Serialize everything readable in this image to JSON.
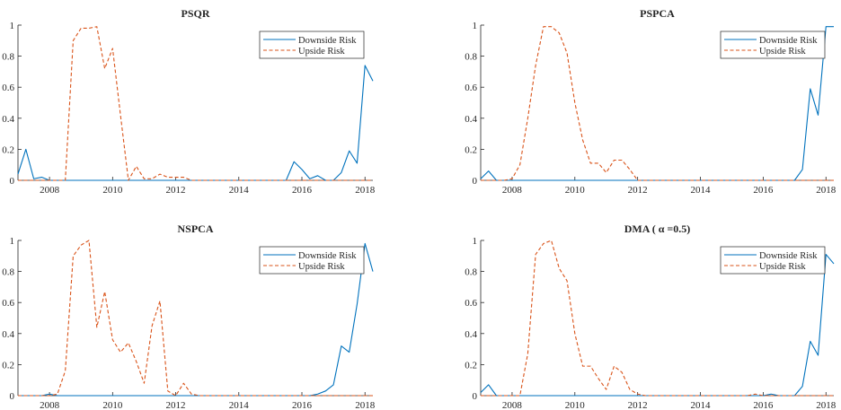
{
  "colors": {
    "downside": "#0072BD",
    "upside": "#D95319",
    "axis": "#262626",
    "background": "#ffffff"
  },
  "chart_data": [
    {
      "type": "line",
      "title": "PSQR",
      "xlabel": "",
      "ylabel": "",
      "xlim": [
        2007.0,
        2018.25
      ],
      "ylim": [
        0,
        1
      ],
      "xticks": [
        2008,
        2010,
        2012,
        2014,
        2016,
        2018
      ],
      "yticks": [
        0,
        0.2,
        0.4,
        0.6,
        0.8,
        1
      ],
      "grid": false,
      "legend_position": "top-right",
      "series": [
        {
          "name": "Downside Risk",
          "style": "solid",
          "x": [
            2007.0,
            2007.25,
            2007.5,
            2007.75,
            2008.0,
            2008.25,
            2008.5,
            2008.75,
            2009.0,
            2009.25,
            2009.5,
            2009.75,
            2010.0,
            2010.25,
            2010.5,
            2010.75,
            2011.0,
            2011.25,
            2011.5,
            2011.75,
            2012.0,
            2012.25,
            2012.5,
            2012.75,
            2013.0,
            2013.25,
            2013.5,
            2013.75,
            2014.0,
            2014.25,
            2014.5,
            2014.75,
            2015.0,
            2015.25,
            2015.5,
            2015.75,
            2016.0,
            2016.25,
            2016.5,
            2016.75,
            2017.0,
            2017.25,
            2017.5,
            2017.75,
            2018.0,
            2018.25
          ],
          "y": [
            0.04,
            0.2,
            0.01,
            0.02,
            0.0,
            0.0,
            0.0,
            0.0,
            0.0,
            0.0,
            0.0,
            0.0,
            0.0,
            0.0,
            0.0,
            0.0,
            0.0,
            0.0,
            0.0,
            0.0,
            0.0,
            0.0,
            0.0,
            0.0,
            0.0,
            0.0,
            0.0,
            0.0,
            0.0,
            0.0,
            0.0,
            0.0,
            0.0,
            0.0,
            0.0,
            0.12,
            0.07,
            0.01,
            0.03,
            0.0,
            0.0,
            0.05,
            0.19,
            0.11,
            0.74,
            0.64
          ]
        },
        {
          "name": "Upside Risk",
          "style": "dashed",
          "x": [
            2007.0,
            2007.25,
            2007.5,
            2007.75,
            2008.0,
            2008.25,
            2008.5,
            2008.75,
            2009.0,
            2009.25,
            2009.5,
            2009.75,
            2010.0,
            2010.25,
            2010.5,
            2010.75,
            2011.0,
            2011.25,
            2011.5,
            2011.75,
            2012.0,
            2012.25,
            2012.5,
            2012.75,
            2013.0,
            2013.25,
            2013.5,
            2013.75,
            2014.0,
            2014.25,
            2014.5,
            2014.75,
            2015.0,
            2015.25,
            2015.5,
            2015.75,
            2016.0,
            2016.25,
            2016.5,
            2016.75,
            2017.0,
            2017.25,
            2017.5,
            2017.75,
            2018.0,
            2018.25
          ],
          "y": [
            0.0,
            0.0,
            0.0,
            0.0,
            0.0,
            0.0,
            0.0,
            0.9,
            0.98,
            0.98,
            0.99,
            0.72,
            0.85,
            0.42,
            0.0,
            0.09,
            0.01,
            0.01,
            0.04,
            0.02,
            0.02,
            0.02,
            0.0,
            0.0,
            0.0,
            0.0,
            0.0,
            0.0,
            0.0,
            0.0,
            0.0,
            0.0,
            0.0,
            0.0,
            0.0,
            0.0,
            0.0,
            0.0,
            0.0,
            0.0,
            0.0,
            0.0,
            0.0,
            0.0,
            0.0,
            0.0
          ]
        }
      ]
    },
    {
      "type": "line",
      "title": "PSPCA",
      "xlabel": "",
      "ylabel": "",
      "xlim": [
        2007.0,
        2018.25
      ],
      "ylim": [
        0,
        1
      ],
      "xticks": [
        2008,
        2010,
        2012,
        2014,
        2016,
        2018
      ],
      "yticks": [
        0,
        0.2,
        0.4,
        0.6,
        0.8,
        1
      ],
      "grid": false,
      "legend_position": "top-right",
      "series": [
        {
          "name": "Downside Risk",
          "style": "solid",
          "x": [
            2007.0,
            2007.25,
            2007.5,
            2007.75,
            2008.0,
            2008.25,
            2008.5,
            2008.75,
            2009.0,
            2009.25,
            2009.5,
            2009.75,
            2010.0,
            2010.25,
            2010.5,
            2010.75,
            2011.0,
            2011.25,
            2011.5,
            2011.75,
            2012.0,
            2012.25,
            2012.5,
            2012.75,
            2013.0,
            2013.25,
            2013.5,
            2013.75,
            2014.0,
            2014.25,
            2014.5,
            2014.75,
            2015.0,
            2015.25,
            2015.5,
            2015.75,
            2016.0,
            2016.25,
            2016.5,
            2016.75,
            2017.0,
            2017.25,
            2017.5,
            2017.75,
            2018.0,
            2018.25
          ],
          "y": [
            0.01,
            0.06,
            0.0,
            0.0,
            0.0,
            0.0,
            0.0,
            0.0,
            0.0,
            0.0,
            0.0,
            0.0,
            0.0,
            0.0,
            0.0,
            0.0,
            0.0,
            0.0,
            0.0,
            0.0,
            0.0,
            0.0,
            0.0,
            0.0,
            0.0,
            0.0,
            0.0,
            0.0,
            0.0,
            0.0,
            0.0,
            0.0,
            0.0,
            0.0,
            0.0,
            0.0,
            0.0,
            0.0,
            0.0,
            0.0,
            0.0,
            0.07,
            0.59,
            0.42,
            0.99,
            0.99
          ]
        },
        {
          "name": "Upside Risk",
          "style": "dashed",
          "x": [
            2007.0,
            2007.25,
            2007.5,
            2007.75,
            2008.0,
            2008.25,
            2008.5,
            2008.75,
            2009.0,
            2009.25,
            2009.5,
            2009.75,
            2010.0,
            2010.25,
            2010.5,
            2010.75,
            2011.0,
            2011.25,
            2011.5,
            2011.75,
            2012.0,
            2012.25,
            2012.5,
            2012.75,
            2013.0,
            2013.25,
            2013.5,
            2013.75,
            2014.0,
            2014.25,
            2014.5,
            2014.75,
            2015.0,
            2015.25,
            2015.5,
            2015.75,
            2016.0,
            2016.25,
            2016.5,
            2016.75,
            2017.0,
            2017.25,
            2017.5,
            2017.75,
            2018.0,
            2018.25
          ],
          "y": [
            0.0,
            0.0,
            0.0,
            0.0,
            0.01,
            0.1,
            0.4,
            0.74,
            0.99,
            0.99,
            0.95,
            0.82,
            0.5,
            0.26,
            0.11,
            0.11,
            0.05,
            0.13,
            0.13,
            0.07,
            0.0,
            0.0,
            0.0,
            0.0,
            0.0,
            0.0,
            0.0,
            0.0,
            0.0,
            0.0,
            0.0,
            0.0,
            0.0,
            0.0,
            0.0,
            0.0,
            0.0,
            0.0,
            0.0,
            0.0,
            0.0,
            0.0,
            0.0,
            0.0,
            0.0,
            0.0
          ]
        }
      ]
    },
    {
      "type": "line",
      "title": "NSPCA",
      "xlabel": "",
      "ylabel": "",
      "xlim": [
        2007.0,
        2018.25
      ],
      "ylim": [
        0,
        1
      ],
      "xticks": [
        2008,
        2010,
        2012,
        2014,
        2016,
        2018
      ],
      "yticks": [
        0,
        0.2,
        0.4,
        0.6,
        0.8,
        1
      ],
      "grid": false,
      "legend_position": "top-right",
      "series": [
        {
          "name": "Downside Risk",
          "style": "solid",
          "x": [
            2007.0,
            2007.25,
            2007.5,
            2007.75,
            2008.0,
            2008.25,
            2008.5,
            2008.75,
            2009.0,
            2009.25,
            2009.5,
            2009.75,
            2010.0,
            2010.25,
            2010.5,
            2010.75,
            2011.0,
            2011.25,
            2011.5,
            2011.75,
            2012.0,
            2012.25,
            2012.5,
            2012.75,
            2013.0,
            2013.25,
            2013.5,
            2013.75,
            2014.0,
            2014.25,
            2014.5,
            2014.75,
            2015.0,
            2015.25,
            2015.5,
            2015.75,
            2016.0,
            2016.25,
            2016.5,
            2016.75,
            2017.0,
            2017.25,
            2017.5,
            2017.75,
            2018.0,
            2018.25
          ],
          "y": [
            0.0,
            0.0,
            0.0,
            0.0,
            0.01,
            0.0,
            0.0,
            0.0,
            0.0,
            0.0,
            0.0,
            0.0,
            0.0,
            0.0,
            0.0,
            0.0,
            0.0,
            0.0,
            0.0,
            0.0,
            0.0,
            0.0,
            0.0,
            0.0,
            0.0,
            0.0,
            0.0,
            0.0,
            0.0,
            0.0,
            0.0,
            0.0,
            0.0,
            0.0,
            0.0,
            0.0,
            0.0,
            0.0,
            0.01,
            0.03,
            0.07,
            0.32,
            0.28,
            0.59,
            0.98,
            0.8
          ]
        },
        {
          "name": "Upside Risk",
          "style": "dashed",
          "x": [
            2007.0,
            2007.25,
            2007.5,
            2007.75,
            2008.0,
            2008.25,
            2008.5,
            2008.75,
            2009.0,
            2009.25,
            2009.5,
            2009.75,
            2010.0,
            2010.25,
            2010.5,
            2010.75,
            2011.0,
            2011.25,
            2011.5,
            2011.75,
            2012.0,
            2012.25,
            2012.5,
            2012.75,
            2013.0,
            2013.25,
            2013.5,
            2013.75,
            2014.0,
            2014.25,
            2014.5,
            2014.75,
            2015.0,
            2015.25,
            2015.5,
            2015.75,
            2016.0,
            2016.25,
            2016.5,
            2016.75,
            2017.0,
            2017.25,
            2017.5,
            2017.75,
            2018.0,
            2018.25
          ],
          "y": [
            0.0,
            0.0,
            0.0,
            0.0,
            0.0,
            0.01,
            0.16,
            0.9,
            0.97,
            1.0,
            0.44,
            0.67,
            0.36,
            0.28,
            0.34,
            0.22,
            0.08,
            0.45,
            0.61,
            0.03,
            0.0,
            0.08,
            0.01,
            0.0,
            0.0,
            0.0,
            0.0,
            0.0,
            0.0,
            0.0,
            0.0,
            0.0,
            0.0,
            0.0,
            0.0,
            0.0,
            0.0,
            0.0,
            0.0,
            0.0,
            0.0,
            0.0,
            0.0,
            0.0,
            0.0,
            0.0
          ]
        }
      ]
    },
    {
      "type": "line",
      "title": "DMA ( α =0.5)",
      "xlabel": "",
      "ylabel": "",
      "xlim": [
        2007.0,
        2018.25
      ],
      "ylim": [
        0,
        1
      ],
      "xticks": [
        2008,
        2010,
        2012,
        2014,
        2016,
        2018
      ],
      "yticks": [
        0,
        0.2,
        0.4,
        0.6,
        0.8,
        1
      ],
      "grid": false,
      "legend_position": "top-right",
      "series": [
        {
          "name": "Downside Risk",
          "style": "solid",
          "x": [
            2007.0,
            2007.25,
            2007.5,
            2007.75,
            2008.0,
            2008.25,
            2008.5,
            2008.75,
            2009.0,
            2009.25,
            2009.5,
            2009.75,
            2010.0,
            2010.25,
            2010.5,
            2010.75,
            2011.0,
            2011.25,
            2011.5,
            2011.75,
            2012.0,
            2012.25,
            2012.5,
            2012.75,
            2013.0,
            2013.25,
            2013.5,
            2013.75,
            2014.0,
            2014.25,
            2014.5,
            2014.75,
            2015.0,
            2015.25,
            2015.5,
            2015.75,
            2016.0,
            2016.25,
            2016.5,
            2016.75,
            2017.0,
            2017.25,
            2017.5,
            2017.75,
            2018.0,
            2018.25
          ],
          "y": [
            0.02,
            0.07,
            0.0,
            0.0,
            0.0,
            0.0,
            0.0,
            0.0,
            0.0,
            0.0,
            0.0,
            0.0,
            0.0,
            0.0,
            0.0,
            0.0,
            0.0,
            0.0,
            0.0,
            0.0,
            0.0,
            0.0,
            0.0,
            0.0,
            0.0,
            0.0,
            0.0,
            0.0,
            0.0,
            0.0,
            0.0,
            0.0,
            0.0,
            0.0,
            0.0,
            0.0,
            0.0,
            0.01,
            0.0,
            0.0,
            0.0,
            0.06,
            0.35,
            0.26,
            0.91,
            0.85
          ]
        },
        {
          "name": "Upside Risk",
          "style": "dashed",
          "x": [
            2007.0,
            2007.25,
            2007.5,
            2007.75,
            2008.0,
            2008.25,
            2008.5,
            2008.75,
            2009.0,
            2009.25,
            2009.5,
            2009.75,
            2010.0,
            2010.25,
            2010.5,
            2010.75,
            2011.0,
            2011.25,
            2011.5,
            2011.75,
            2012.0,
            2012.25,
            2012.5,
            2012.75,
            2013.0,
            2013.25,
            2013.5,
            2013.75,
            2014.0,
            2014.25,
            2014.5,
            2014.75,
            2015.0,
            2015.25,
            2015.5,
            2015.75,
            2016.0,
            2016.25,
            2016.5,
            2016.75,
            2017.0,
            2017.25,
            2017.5,
            2017.75,
            2018.0,
            2018.25
          ],
          "y": [
            0.0,
            0.0,
            0.0,
            0.0,
            0.0,
            0.0,
            0.27,
            0.91,
            0.98,
            1.0,
            0.82,
            0.74,
            0.4,
            0.19,
            0.19,
            0.11,
            0.04,
            0.19,
            0.15,
            0.04,
            0.01,
            0.0,
            0.0,
            0.0,
            0.0,
            0.0,
            0.0,
            0.0,
            0.0,
            0.0,
            0.0,
            0.0,
            0.0,
            0.0,
            0.0,
            0.01,
            0.0,
            0.0,
            0.0,
            0.0,
            0.0,
            0.0,
            0.0,
            0.0,
            0.0,
            0.0
          ]
        }
      ]
    }
  ]
}
